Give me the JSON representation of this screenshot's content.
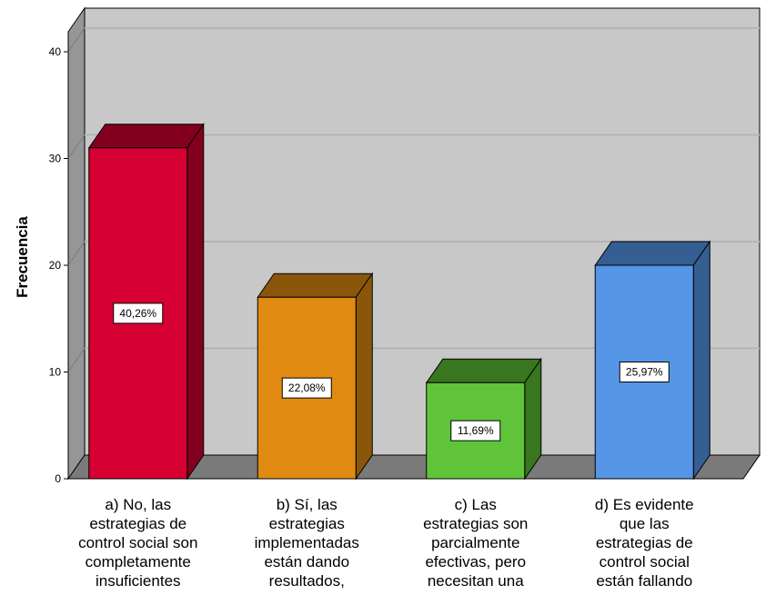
{
  "chart_data": {
    "type": "bar",
    "ylabel": "Frecuencia",
    "xlabel": "",
    "ylim": [
      0,
      40
    ],
    "yticks": [
      0,
      10,
      20,
      30,
      40
    ],
    "grid": true,
    "categories": [
      [
        "a) No, las",
        "estrategias de",
        "control social son",
        "completamente",
        "insuficientes"
      ],
      [
        "b) Sí, las",
        "estrategias",
        "implementadas",
        "están dando",
        "resultados,"
      ],
      [
        "c) Las",
        "estrategias son",
        "parcialmente",
        "efectivas, pero",
        "necesitan una"
      ],
      [
        "d) Es evidente",
        "que las",
        "estrategias de",
        "control social",
        "están fallando"
      ]
    ],
    "values": [
      31,
      17,
      9,
      20
    ],
    "labels": [
      "40,26%",
      "22,08%",
      "11,69%",
      "25,97%"
    ],
    "colors": {
      "front": [
        "#d60032",
        "#e08a12",
        "#60c43a",
        "#5596e6"
      ],
      "top": [
        "#82001e",
        "#8a560a",
        "#38761f",
        "#355e92"
      ],
      "side": [
        "#82001e",
        "#8a560a",
        "#38761f",
        "#355e92"
      ],
      "plot_back": "#c8c8c8",
      "plot_side": "#969696",
      "floor": "#7a7a7a"
    }
  }
}
